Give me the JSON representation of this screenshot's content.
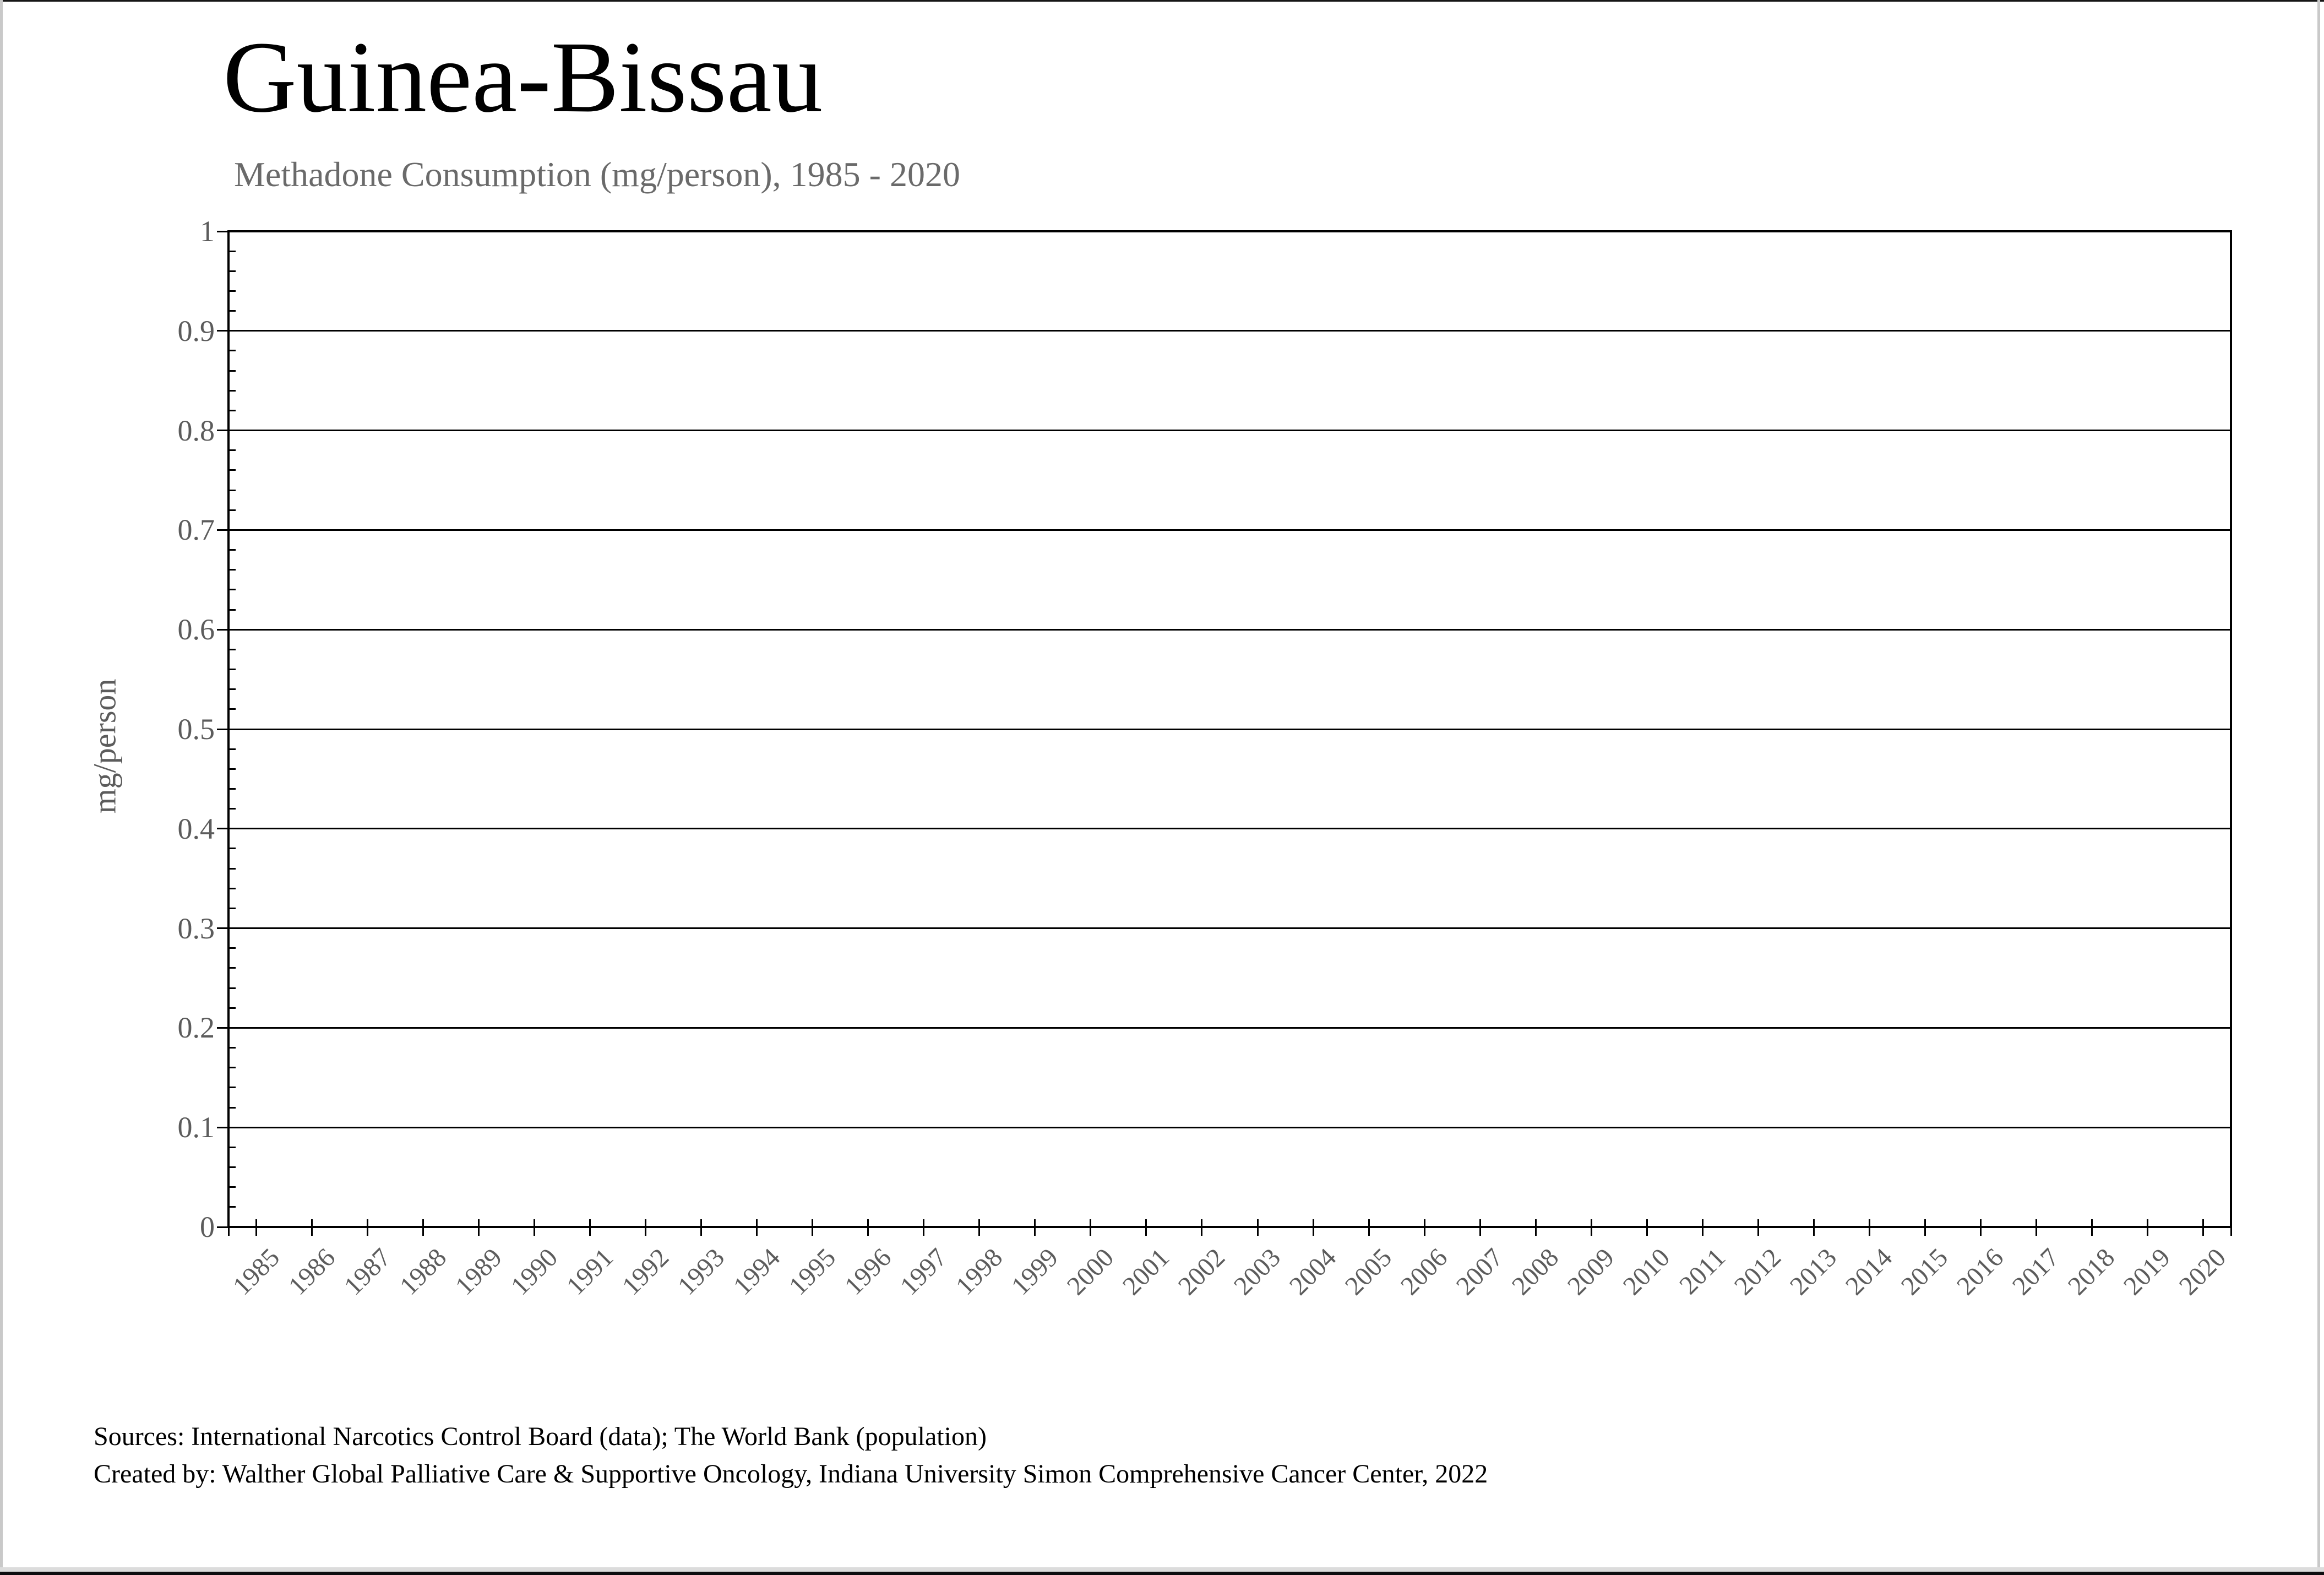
{
  "window": {
    "background_color": "#ffffff",
    "frame_side_color": "#c9c9c9",
    "frame_top_color": "#161616",
    "bottom_strip_light_color": "#dcdcdc",
    "bottom_strip_dark_color": "#0d0d0f"
  },
  "header": {
    "title": "Guinea-Bissau",
    "subtitle": "Methadone Consumption (mg/person), 1985 - 2020"
  },
  "footer": {
    "sources_line1": "Sources: International Narcotics Control Board (data); The World Bank (population)",
    "sources_line2": "Created by: Walther Global Palliative Care & Supportive Oncology, Indiana University Simon Comprehensive Cancer Center, 2022"
  },
  "chart_data": {
    "type": "line",
    "title": "Guinea-Bissau",
    "subtitle": "Methadone Consumption (mg/person), 1985 - 2020",
    "xlabel": "",
    "ylabel": "mg/person",
    "ylim": [
      0,
      1
    ],
    "ytick_labels_top_to_bottom": [
      "1",
      "0.9",
      "0.8",
      "0.7",
      "0.6",
      "0.5",
      "0.4",
      "0.3",
      "0.2",
      "0.1",
      "0"
    ],
    "minor_ytick_step": 0.02,
    "categories": [
      "1985",
      "1986",
      "1987",
      "1988",
      "1989",
      "1990",
      "1991",
      "1992",
      "1993",
      "1994",
      "1995",
      "1996",
      "1997",
      "1998",
      "1999",
      "2000",
      "2001",
      "2002",
      "2003",
      "2004",
      "2005",
      "2006",
      "2007",
      "2008",
      "2009",
      "2010",
      "2011",
      "2012",
      "2013",
      "2014",
      "2015",
      "2016",
      "2017",
      "2018",
      "2019",
      "2020"
    ],
    "series": [
      {
        "name": "Methadone Consumption (mg/person)",
        "values": []
      }
    ],
    "grid": "horizontal",
    "legend": "none",
    "plot_border_color": "#000000",
    "gridline_color": "#000000",
    "tick_label_color": "#5c5c5c"
  }
}
